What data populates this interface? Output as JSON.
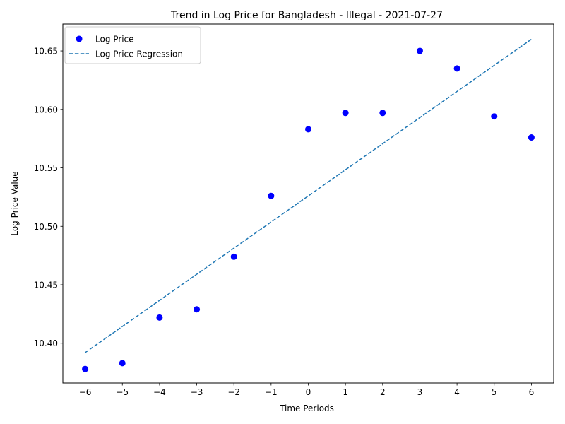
{
  "chart_data": {
    "type": "scatter",
    "title": "Trend in Log Price for Bangladesh - Illegal - 2021-07-27",
    "xlabel": "Time Periods",
    "ylabel": "Log Price Value",
    "xlim": [
      -6.6,
      6.6
    ],
    "ylim": [
      10.366,
      10.673
    ],
    "xticks": [
      -6,
      -5,
      -4,
      -3,
      -2,
      -1,
      0,
      1,
      2,
      3,
      4,
      5,
      6
    ],
    "xtick_labels": [
      "−6",
      "−5",
      "−4",
      "−3",
      "−2",
      "−1",
      "0",
      "1",
      "2",
      "3",
      "4",
      "5",
      "6"
    ],
    "yticks": [
      10.4,
      10.45,
      10.5,
      10.55,
      10.6,
      10.65
    ],
    "ytick_labels": [
      "10.40",
      "10.45",
      "10.50",
      "10.55",
      "10.60",
      "10.65"
    ],
    "grid": false,
    "legend_position": "top-left",
    "series": [
      {
        "name": "Log Price",
        "kind": "scatter",
        "color": "#0000ff",
        "x": [
          -6,
          -5,
          -4,
          -3,
          -2,
          -1,
          0,
          1,
          2,
          3,
          4,
          5,
          6
        ],
        "y": [
          10.378,
          10.383,
          10.422,
          10.429,
          10.474,
          10.526,
          10.583,
          10.597,
          10.597,
          10.65,
          10.635,
          10.594,
          10.576
        ]
      },
      {
        "name": "Log Price Regression",
        "kind": "line",
        "style": "dashed",
        "color": "#1f77b4",
        "x": [
          -6,
          6
        ],
        "y": [
          10.392,
          10.66
        ]
      }
    ]
  }
}
